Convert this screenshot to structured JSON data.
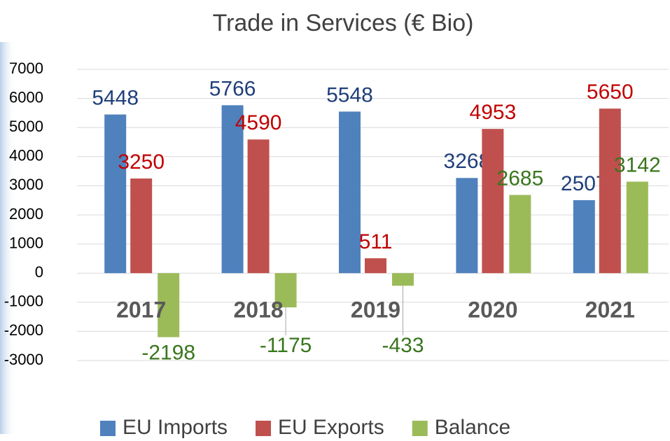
{
  "chart_data": {
    "type": "bar",
    "title": "Trade in Services (€ Bio)",
    "categories": [
      "2017",
      "2018",
      "2019",
      "2020",
      "2021"
    ],
    "series": [
      {
        "name": "EU Imports",
        "color": "#4f81bd",
        "label_color": "#1f3f7a",
        "values": [
          5448,
          5766,
          5548,
          3268,
          2507
        ]
      },
      {
        "name": "EU Exports",
        "color": "#c0504d",
        "label_color": "#c00000",
        "values": [
          3250,
          4590,
          511,
          4953,
          5650
        ]
      },
      {
        "name": "Balance",
        "color": "#9bbb59",
        "label_color": "#38761d",
        "values": [
          -2198,
          -1175,
          -433,
          2685,
          3142
        ]
      }
    ],
    "ylim": [
      -3000,
      7000
    ],
    "yticks": [
      -3000,
      -2000,
      -1000,
      0,
      1000,
      2000,
      3000,
      4000,
      5000,
      6000,
      7000
    ],
    "grid": true,
    "legend": "bottom"
  }
}
